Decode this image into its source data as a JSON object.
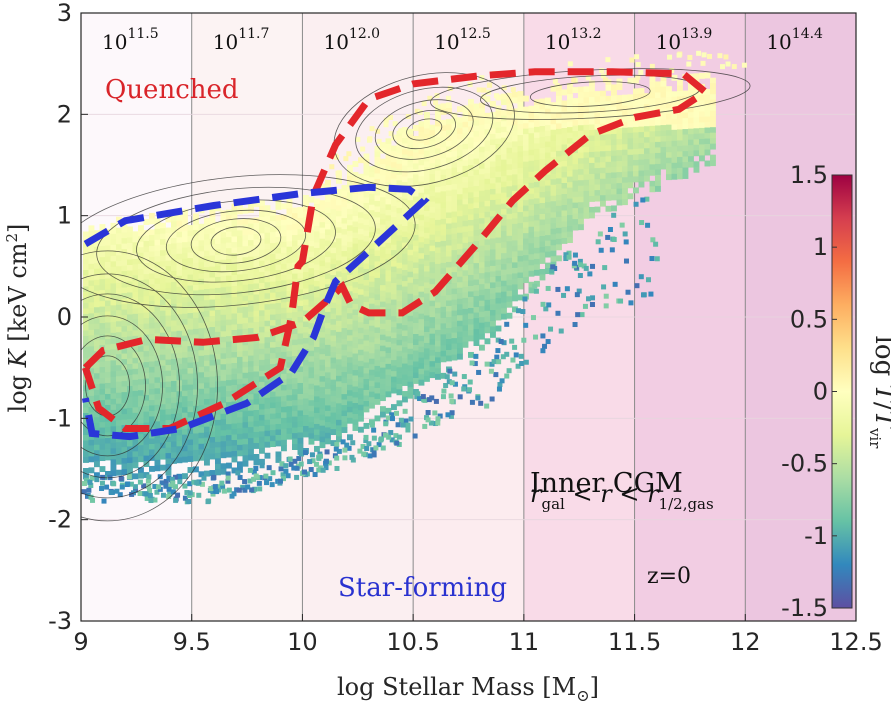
{
  "chart_data": {
    "type": "heatmap",
    "title": "",
    "xlabel": "log Stellar Mass [M⊙]",
    "xlabel_prefix": "log Stellar Mass [M",
    "xlabel_suffix": "]",
    "xlabel_sun": "⊙",
    "ylabel": "log K [keV cm²]",
    "ylabel_prefix": "log ",
    "ylabel_var": "K",
    "ylabel_unit": " [keV cm",
    "ylabel_sq": "2",
    "ylabel_end": "]",
    "xlim": [
      9,
      12.5
    ],
    "ylim": [
      -3,
      3
    ],
    "xticks": [
      "9",
      "9.5",
      "10",
      "10.5",
      "11",
      "11.5",
      "12",
      "12.5"
    ],
    "xtick_values": [
      9,
      9.5,
      10,
      10.5,
      11,
      11.5,
      12,
      12.5
    ],
    "yticks": [
      "3",
      "2",
      "1",
      "0",
      "-1",
      "-2",
      "-3"
    ],
    "ytick_values": [
      3,
      2,
      1,
      0,
      -1,
      -2,
      -3
    ],
    "halo_mass_labels": [
      {
        "base": "10",
        "exp": "11.5"
      },
      {
        "base": "10",
        "exp": "11.7"
      },
      {
        "base": "10",
        "exp": "12.0"
      },
      {
        "base": "10",
        "exp": "12.5"
      },
      {
        "base": "10",
        "exp": "13.2"
      },
      {
        "base": "10",
        "exp": "13.9"
      },
      {
        "base": "10",
        "exp": "14.4"
      }
    ],
    "halo_bin_edges": [
      9,
      9.5,
      10,
      10.5,
      11,
      11.5,
      12,
      12.5
    ],
    "quenched_label": "Quenched",
    "starforming_label": "Star-forming",
    "annotation_title": "Inner CGM",
    "annotation_r": "r",
    "annotation_gal": "gal",
    "annotation_lt": " < ",
    "annotation_half": "1/2,gas",
    "redshift_label": "z=0",
    "colorbar": {
      "label_prefix": "log ",
      "label_T": "T",
      "label_slash": "/",
      "label_Tvir": "T",
      "label_vir": "vir",
      "range": [
        -1.5,
        1.5
      ],
      "ticks": [
        "1.5",
        "1",
        "0.5",
        "0",
        "-0.5",
        "-1",
        "-1.5"
      ],
      "tick_values": [
        1.5,
        1,
        0.5,
        0,
        -0.5,
        -1,
        -1.5
      ],
      "colormap": [
        "#5e4fa2",
        "#3288bd",
        "#66c2a5",
        "#abdda4",
        "#e6f598",
        "#ffffbf",
        "#fee08b",
        "#fdae61",
        "#f46d43",
        "#d53e4f",
        "#9e0142"
      ]
    },
    "colors": {
      "quenched_contour": "#e3262b",
      "starforming_contour": "#2a35d8",
      "quenched_text": "#d9252a",
      "starforming_text": "#2932d0"
    },
    "quenched_contour": [
      [
        9.02,
        -0.5
      ],
      [
        9.1,
        -0.33
      ],
      [
        9.3,
        -0.22
      ],
      [
        9.55,
        -0.25
      ],
      [
        9.8,
        -0.2
      ],
      [
        10.0,
        -0.05
      ],
      [
        10.12,
        0.18
      ],
      [
        10.18,
        0.3
      ],
      [
        10.22,
        0.12
      ],
      [
        10.3,
        0.04
      ],
      [
        10.45,
        0.04
      ],
      [
        10.6,
        0.25
      ],
      [
        10.78,
        0.7
      ],
      [
        10.95,
        1.15
      ],
      [
        11.1,
        1.45
      ],
      [
        11.3,
        1.8
      ],
      [
        11.5,
        1.97
      ],
      [
        11.7,
        2.05
      ],
      [
        11.82,
        2.22
      ],
      [
        11.72,
        2.4
      ],
      [
        11.4,
        2.42
      ],
      [
        11.05,
        2.42
      ],
      [
        10.8,
        2.38
      ],
      [
        10.5,
        2.3
      ],
      [
        10.3,
        2.15
      ],
      [
        10.15,
        1.7
      ],
      [
        10.05,
        1.2
      ],
      [
        10.0,
        0.55
      ],
      [
        9.98,
        0.5
      ],
      [
        9.95,
        0.0
      ],
      [
        9.9,
        -0.5
      ],
      [
        9.65,
        -0.85
      ],
      [
        9.4,
        -1.1
      ],
      [
        9.2,
        -1.1
      ],
      [
        9.08,
        -0.9
      ],
      [
        9.02,
        -0.5
      ]
    ],
    "starforming_contour": [
      [
        9.02,
        0.72
      ],
      [
        9.2,
        0.95
      ],
      [
        9.6,
        1.1
      ],
      [
        10.0,
        1.22
      ],
      [
        10.3,
        1.28
      ],
      [
        10.48,
        1.26
      ],
      [
        10.55,
        1.15
      ],
      [
        10.45,
        0.95
      ],
      [
        10.3,
        0.65
      ],
      [
        10.15,
        0.35
      ],
      [
        10.1,
        0.1
      ],
      [
        10.05,
        -0.2
      ],
      [
        9.95,
        -0.55
      ],
      [
        9.75,
        -0.85
      ],
      [
        9.45,
        -1.1
      ],
      [
        9.22,
        -1.18
      ],
      [
        9.05,
        -1.15
      ],
      [
        9.02,
        -0.8
      ]
    ]
  }
}
